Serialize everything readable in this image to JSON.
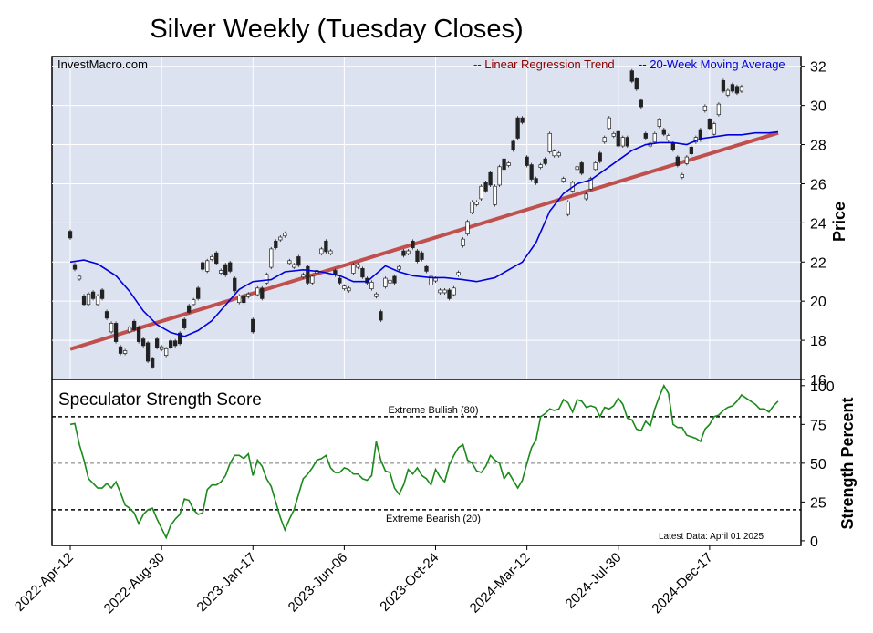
{
  "title": "Silver Weekly (Tuesday Closes)",
  "source": "InvestMacro.com",
  "latest_data": "Latest Data: April 01 2025",
  "colors": {
    "panel_bg": "#dde2f0",
    "grid": "#ffffff",
    "regression": "#c0504d",
    "regression_text": "#8b0000",
    "ma": "#0000dd",
    "score": "#1a8a1a",
    "candle_down": "#222222",
    "candle_up": "#ffffff"
  },
  "chart_data": [
    {
      "type": "candlestick",
      "legend": [
        "-- Linear Regression Trend",
        "-- 20-Week Moving Average"
      ],
      "ylabel": "Price",
      "ylim": [
        16,
        32.5
      ],
      "yticks": [
        16,
        18,
        20,
        22,
        24,
        26,
        28,
        30,
        32
      ],
      "xlim": [
        -4,
        160
      ],
      "grid": true,
      "legend_position": "top-right",
      "x_tick_labels": [
        {
          "i": 0,
          "label": "2022-Apr-12"
        },
        {
          "i": 20,
          "label": "2022-Aug-30"
        },
        {
          "i": 40,
          "label": "2023-Jan-17"
        },
        {
          "i": 60,
          "label": "2023-Jun-06"
        },
        {
          "i": 80,
          "label": "2023-Oct-24"
        },
        {
          "i": 100,
          "label": "2024-Mar-12"
        },
        {
          "i": 120,
          "label": "2024-Jul-30"
        },
        {
          "i": 140,
          "label": "2024-Dec-17"
        }
      ],
      "regression": {
        "start": [
          0,
          17.55
        ],
        "end": [
          155,
          28.6
        ]
      },
      "moving_average": [
        [
          0,
          22.0
        ],
        [
          3,
          22.1
        ],
        [
          6,
          21.9
        ],
        [
          10,
          21.3
        ],
        [
          13,
          20.5
        ],
        [
          16,
          19.5
        ],
        [
          19,
          18.8
        ],
        [
          22,
          18.4
        ],
        [
          25,
          18.2
        ],
        [
          28,
          18.5
        ],
        [
          31,
          19.0
        ],
        [
          34,
          19.8
        ],
        [
          37,
          20.6
        ],
        [
          40,
          21.0
        ],
        [
          44,
          21.1
        ],
        [
          47,
          21.5
        ],
        [
          51,
          21.6
        ],
        [
          55,
          21.5
        ],
        [
          59,
          21.3
        ],
        [
          62,
          21.0
        ],
        [
          65,
          21.0
        ],
        [
          69,
          21.8
        ],
        [
          72,
          21.5
        ],
        [
          75,
          21.3
        ],
        [
          79,
          21.2
        ],
        [
          82,
          21.2
        ],
        [
          86,
          21.1
        ],
        [
          89,
          21.0
        ],
        [
          93,
          21.2
        ],
        [
          96,
          21.6
        ],
        [
          99,
          22.0
        ],
        [
          102,
          23.0
        ],
        [
          105,
          24.6
        ],
        [
          108,
          25.5
        ],
        [
          111,
          26.0
        ],
        [
          114,
          26.2
        ],
        [
          117,
          26.7
        ],
        [
          120,
          27.2
        ],
        [
          123,
          27.7
        ],
        [
          126,
          28.0
        ],
        [
          129,
          28.1
        ],
        [
          132,
          28.1
        ],
        [
          135,
          28.0
        ],
        [
          138,
          28.3
        ],
        [
          141,
          28.4
        ],
        [
          144,
          28.5
        ],
        [
          147,
          28.5
        ],
        [
          150,
          28.6
        ],
        [
          153,
          28.6
        ],
        [
          155,
          28.65
        ]
      ],
      "candles": [
        [
          23.5,
          23.3
        ],
        [
          21.8,
          21.7
        ],
        [
          21.2,
          21.2
        ],
        [
          20.2,
          19.9
        ],
        [
          19.9,
          20.3
        ],
        [
          20.4,
          20.2
        ],
        [
          19.9,
          20.2
        ],
        [
          20.5,
          20.2
        ],
        [
          19.4,
          19.2
        ],
        [
          18.5,
          18.8
        ],
        [
          18.8,
          18.0
        ],
        [
          17.6,
          17.4
        ],
        [
          17.4,
          17.4
        ],
        [
          18.5,
          18.6
        ],
        [
          18.9,
          18.6
        ],
        [
          18.6,
          18.0
        ],
        [
          18.0,
          17.8
        ],
        [
          17.8,
          17.0
        ],
        [
          17.0,
          16.7
        ],
        [
          18.0,
          17.7
        ],
        [
          17.6,
          17.6
        ],
        [
          17.3,
          17.5
        ],
        [
          17.9,
          17.7
        ],
        [
          17.9,
          17.8
        ],
        [
          18.3,
          17.9
        ],
        [
          19.0,
          18.7
        ],
        [
          19.7,
          19.5
        ],
        [
          19.9,
          20.0
        ],
        [
          20.6,
          20.2
        ],
        [
          21.9,
          21.7
        ],
        [
          21.6,
          22.0
        ],
        [
          22.2,
          22.2
        ],
        [
          22.4,
          22.0
        ],
        [
          21.5,
          21.5
        ],
        [
          21.8,
          21.4
        ],
        [
          21.9,
          21.6
        ],
        [
          21.1,
          20.6
        ],
        [
          20.0,
          20.2
        ],
        [
          20.2,
          20.0
        ],
        [
          20.3,
          20.3
        ],
        [
          19.0,
          18.5
        ],
        [
          20.4,
          20.6
        ],
        [
          20.6,
          20.2
        ],
        [
          21.0,
          21.3
        ],
        [
          21.8,
          22.6
        ],
        [
          23.0,
          22.8
        ],
        [
          23.2,
          23.2
        ],
        [
          23.4,
          23.4
        ],
        [
          22.0,
          22.0
        ],
        [
          21.8,
          21.8
        ],
        [
          22.2,
          21.9
        ],
        [
          21.3,
          21.3
        ],
        [
          21.7,
          21.0
        ],
        [
          21.0,
          21.2
        ],
        [
          21.5,
          21.5
        ],
        [
          22.5,
          22.6
        ],
        [
          23.0,
          22.6
        ],
        [
          22.5,
          22.5
        ],
        [
          21.5,
          21.4
        ],
        [
          21.1,
          21.0
        ],
        [
          20.7,
          20.7
        ],
        [
          20.6,
          20.6
        ],
        [
          21.5,
          21.8
        ],
        [
          21.8,
          21.8
        ],
        [
          21.6,
          21.3
        ],
        [
          21.1,
          21.0
        ],
        [
          20.7,
          20.9
        ],
        [
          20.3,
          20.3
        ],
        [
          19.4,
          19.1
        ],
        [
          20.8,
          21.1
        ],
        [
          21.0,
          21.0
        ],
        [
          21.2,
          21.0
        ],
        [
          21.7,
          21.7
        ],
        [
          22.5,
          22.4
        ],
        [
          22.5,
          22.5
        ],
        [
          23.0,
          22.8
        ],
        [
          22.5,
          22.1
        ],
        [
          22.4,
          22.2
        ],
        [
          21.7,
          21.6
        ],
        [
          20.9,
          21.2
        ],
        [
          21.1,
          21.1
        ],
        [
          20.5,
          20.5
        ],
        [
          20.5,
          20.5
        ],
        [
          20.5,
          20.2
        ],
        [
          20.4,
          20.6
        ],
        [
          21.4,
          21.4
        ],
        [
          22.9,
          23.1
        ],
        [
          23.5,
          24.0
        ],
        [
          24.6,
          25.0
        ],
        [
          25.0,
          25.0
        ],
        [
          25.3,
          25.8
        ],
        [
          26.0,
          25.7
        ],
        [
          26.5,
          26.0
        ],
        [
          25.0,
          25.8
        ],
        [
          26.0,
          26.8
        ],
        [
          27.2,
          26.8
        ],
        [
          27.0,
          27.0
        ],
        [
          28.1,
          27.8
        ],
        [
          29.3,
          28.4
        ],
        [
          29.3,
          29.2
        ],
        [
          27.3,
          27.0
        ],
        [
          26.9,
          26.3
        ],
        [
          26.2,
          26.1
        ],
        [
          26.9,
          26.9
        ],
        [
          27.2,
          27.1
        ],
        [
          27.7,
          28.5
        ],
        [
          27.5,
          27.6
        ],
        [
          27.5,
          27.5
        ],
        [
          26.2,
          26.2
        ],
        [
          24.5,
          25.0
        ],
        [
          25.7,
          26.0
        ],
        [
          26.8,
          26.8
        ],
        [
          27.0,
          26.6
        ],
        [
          25.3,
          25.4
        ],
        [
          25.8,
          26.2
        ],
        [
          26.8,
          27.0
        ],
        [
          27.5,
          27.2
        ],
        [
          28.2,
          28.3
        ],
        [
          28.9,
          29.3
        ],
        [
          28.5,
          28.5
        ],
        [
          28.6,
          28.0
        ],
        [
          28.0,
          28.3
        ],
        [
          28.3,
          28.0
        ],
        [
          31.7,
          31.3
        ],
        [
          31.3,
          30.9
        ],
        [
          30.2,
          30.0
        ],
        [
          28.5,
          28.4
        ],
        [
          28.0,
          28.0
        ],
        [
          28.2,
          28.5
        ],
        [
          29.0,
          29.2
        ],
        [
          28.7,
          28.6
        ],
        [
          28.3,
          28.4
        ],
        [
          28.0,
          27.8
        ],
        [
          27.3,
          27.0
        ],
        [
          26.4,
          26.4
        ],
        [
          27.1,
          27.3
        ],
        [
          27.8,
          27.6
        ],
        [
          28.2,
          28.3
        ],
        [
          28.7,
          28.3
        ],
        [
          29.8,
          29.9
        ],
        [
          29.2,
          28.9
        ],
        [
          28.6,
          29.0
        ],
        [
          29.6,
          30.0
        ],
        [
          31.2,
          30.8
        ],
        [
          30.6,
          30.7
        ],
        [
          31.0,
          30.8
        ],
        [
          30.9,
          30.7
        ],
        [
          30.8,
          30.9
        ]
      ]
    },
    {
      "type": "line",
      "title": "Speculator Strength Score",
      "ylabel": "Strength Percent",
      "ylim": [
        -3,
        104
      ],
      "yticks": [
        0,
        25,
        50,
        75,
        100
      ],
      "thresholds": [
        {
          "value": 80,
          "label": "Extreme Bullish (80)"
        },
        {
          "value": 50,
          "label": ""
        },
        {
          "value": 20,
          "label": "Extreme Bearish (20)"
        }
      ],
      "series": [
        {
          "values": [
            75,
            75.5,
            62,
            52,
            40,
            37,
            34,
            34,
            37,
            34,
            38,
            31,
            23,
            21,
            18,
            11,
            17,
            20,
            21,
            14,
            8,
            2,
            10,
            14,
            17,
            27,
            26,
            20,
            17,
            18,
            33,
            36,
            36,
            38,
            42,
            50,
            55,
            55,
            53,
            56,
            42,
            52,
            48,
            40,
            35,
            25,
            15,
            7,
            14,
            20,
            30,
            40,
            43,
            47,
            52,
            53,
            55,
            47,
            44,
            44,
            47,
            46,
            43,
            43,
            40,
            39,
            42,
            64,
            52,
            45,
            44,
            34,
            30,
            36,
            46,
            43,
            47,
            42,
            40,
            36,
            46,
            41,
            38,
            49,
            55,
            60,
            62,
            52,
            50,
            45,
            44,
            48,
            55,
            52,
            50,
            40,
            44,
            39,
            34,
            39,
            50,
            60,
            65,
            80,
            82,
            85,
            84,
            85,
            91,
            89,
            83,
            91,
            90,
            86,
            87,
            86,
            80,
            86,
            85,
            87,
            92,
            88,
            79,
            78,
            72,
            71,
            77,
            74,
            85,
            93,
            100,
            95,
            75,
            73,
            73,
            68,
            67,
            66,
            64,
            72,
            75,
            80,
            81,
            84,
            86,
            87,
            90,
            94,
            92,
            90,
            88,
            85,
            85,
            83,
            87,
            90
          ]
        }
      ]
    }
  ]
}
